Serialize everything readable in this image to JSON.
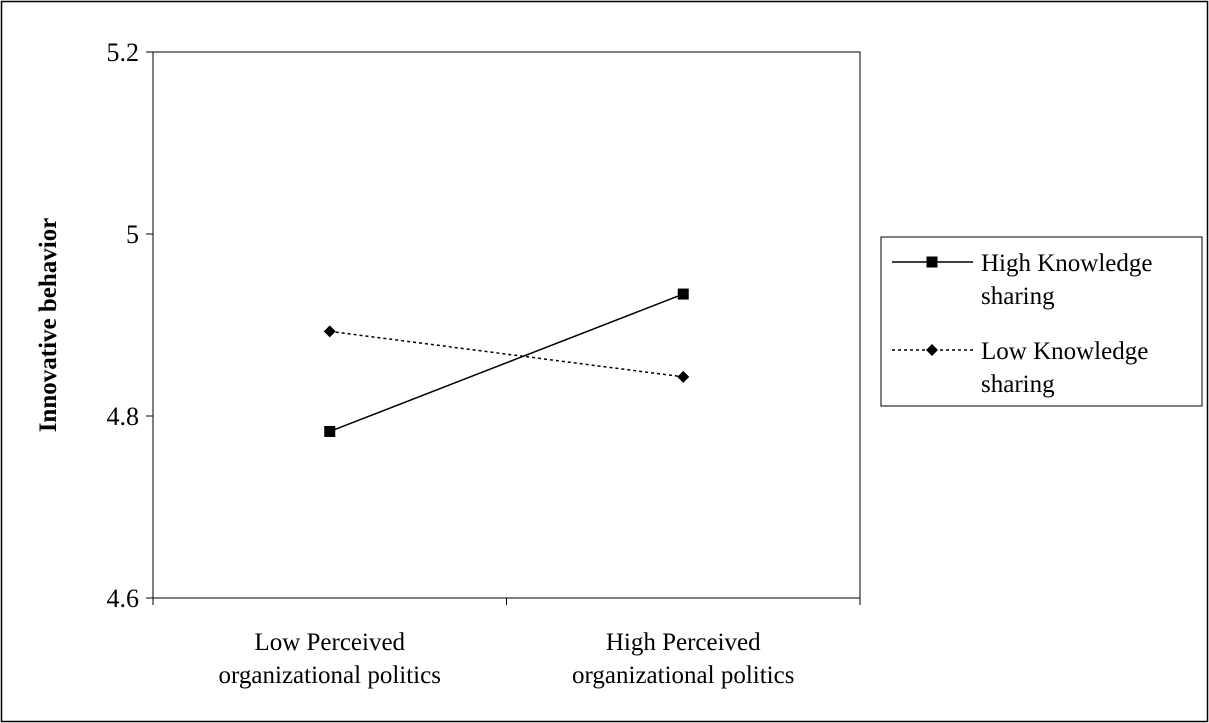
{
  "chart_data": {
    "type": "line",
    "categories": [
      [
        "Low Perceived",
        "organizational politics"
      ],
      [
        "High Perceived",
        "organizational politics"
      ]
    ],
    "series": [
      {
        "name": [
          "High Knowledge",
          "sharing"
        ],
        "values": [
          4.783,
          4.934
        ],
        "marker": "square",
        "line_style": "solid",
        "color": "#000000"
      },
      {
        "name": [
          "Low Knowledge",
          "sharing"
        ],
        "values": [
          4.893,
          4.843
        ],
        "marker": "diamond",
        "line_style": "dotted",
        "color": "#000000"
      }
    ],
    "ylabel": "Innovative behavior",
    "xlabel": "",
    "title": "",
    "ylim": [
      4.6,
      5.2
    ],
    "yticks": [
      4.6,
      4.8,
      5,
      5.2
    ],
    "ytick_labels": [
      "4.6",
      "4.8",
      "5",
      "5.2"
    ],
    "grid": false,
    "legend_position": "right"
  }
}
